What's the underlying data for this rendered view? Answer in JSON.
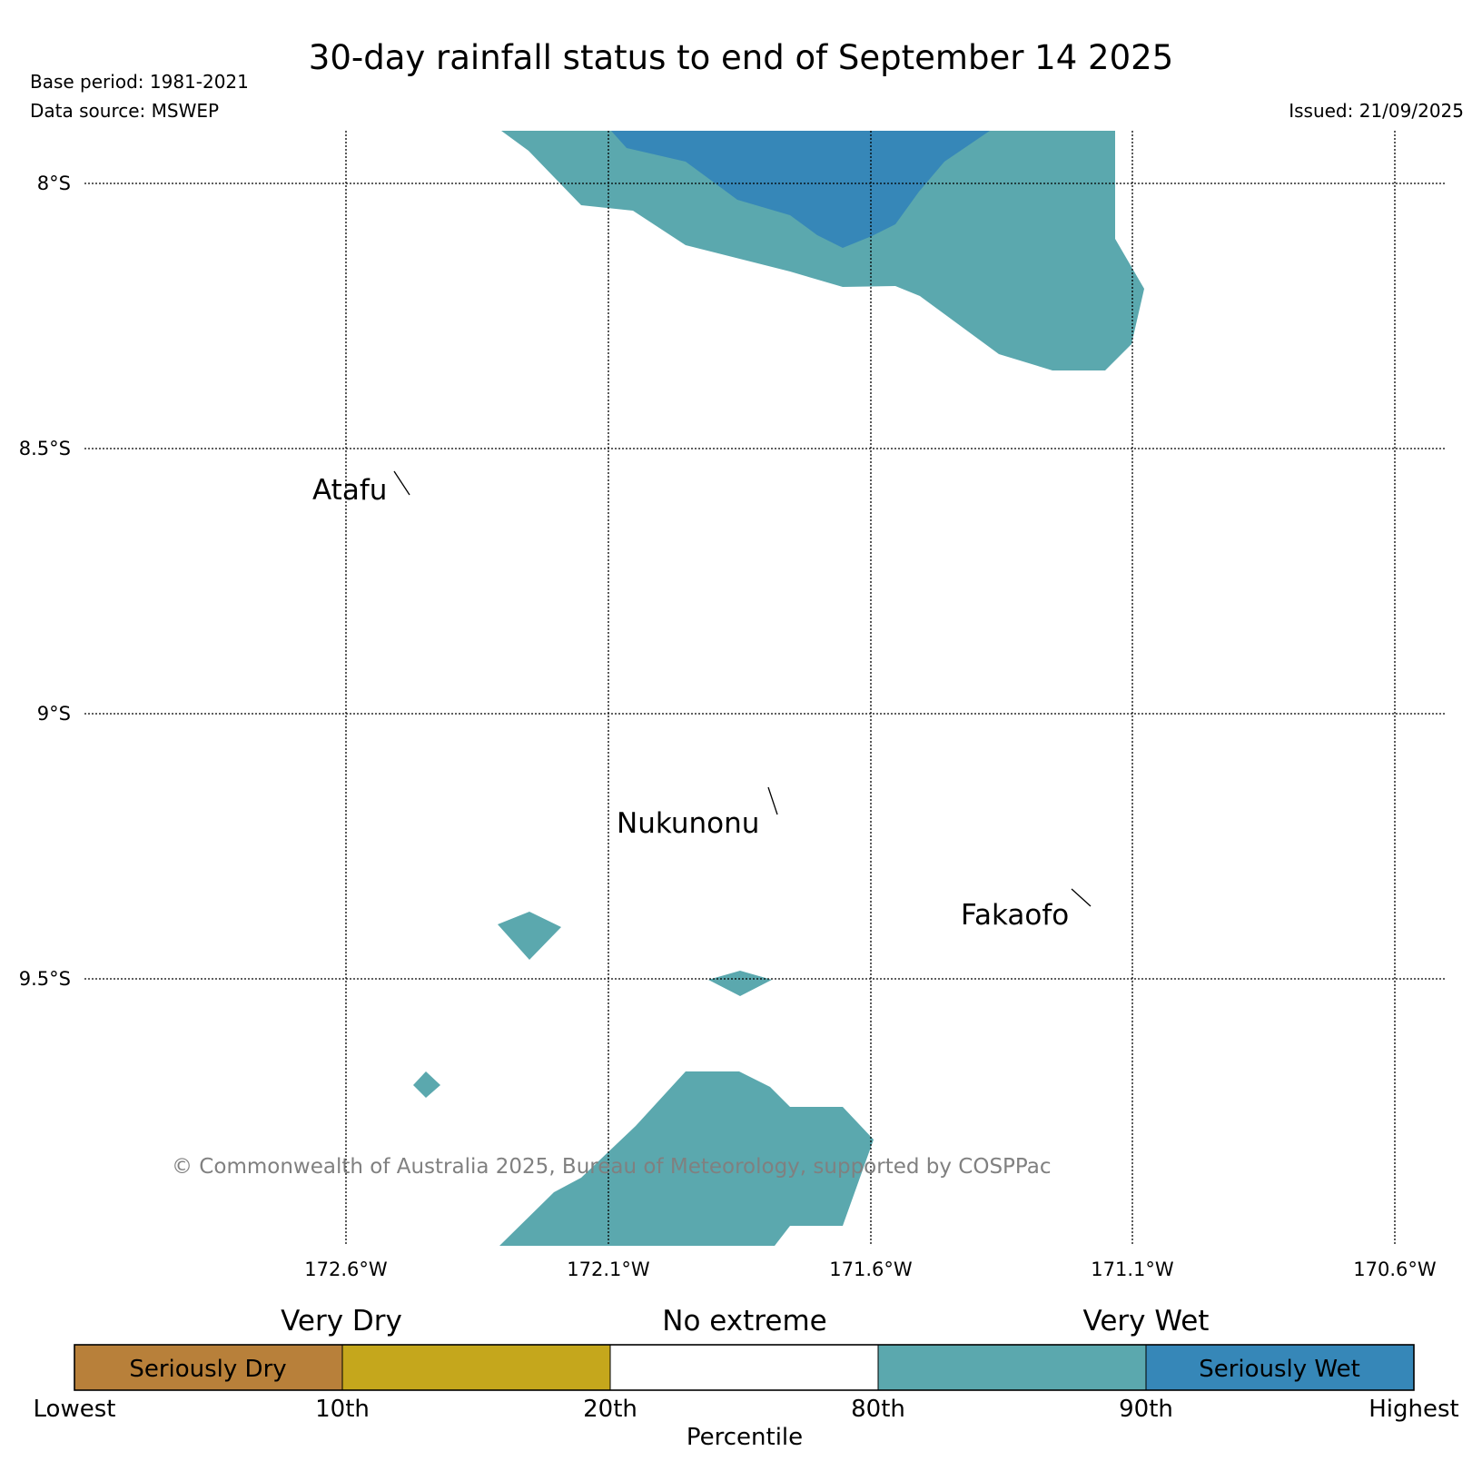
{
  "header": {
    "title": "30-day rainfall status to end of September 14 2025",
    "base_period": "Base period: 1981-2021",
    "data_source": "Data source: MSWEP",
    "issued": "Issued: 21/09/2025"
  },
  "map": {
    "lat_labels": [
      "8°S",
      "8.5°S",
      "9°S",
      "9.5°S"
    ],
    "lon_labels": [
      "172.6°W",
      "172.1°W",
      "171.6°W",
      "171.1°W",
      "170.6°W"
    ],
    "places": [
      "Atafu",
      "Nukunonu",
      "Fakaofo"
    ],
    "copyright": "© Commonwealth of Australia 2025, Bureau of Meteorology, supported by COSPPac",
    "colors": {
      "very_wet": "#5ba8ae",
      "seriously_wet": "#3687b8",
      "grid": "#000000"
    }
  },
  "legend": {
    "headings": [
      "Very Dry",
      "No extreme",
      "Very Wet"
    ],
    "inner_labels": {
      "seriously_dry": "Seriously Dry",
      "seriously_wet": "Seriously Wet"
    },
    "ticks": [
      "Lowest",
      "10th",
      "20th",
      "80th",
      "90th",
      "Highest"
    ],
    "axis_label": "Percentile",
    "colors": [
      "#b8803a",
      "#c5a71c",
      "#ffffff",
      "#5ba8ae",
      "#3687b8"
    ]
  }
}
